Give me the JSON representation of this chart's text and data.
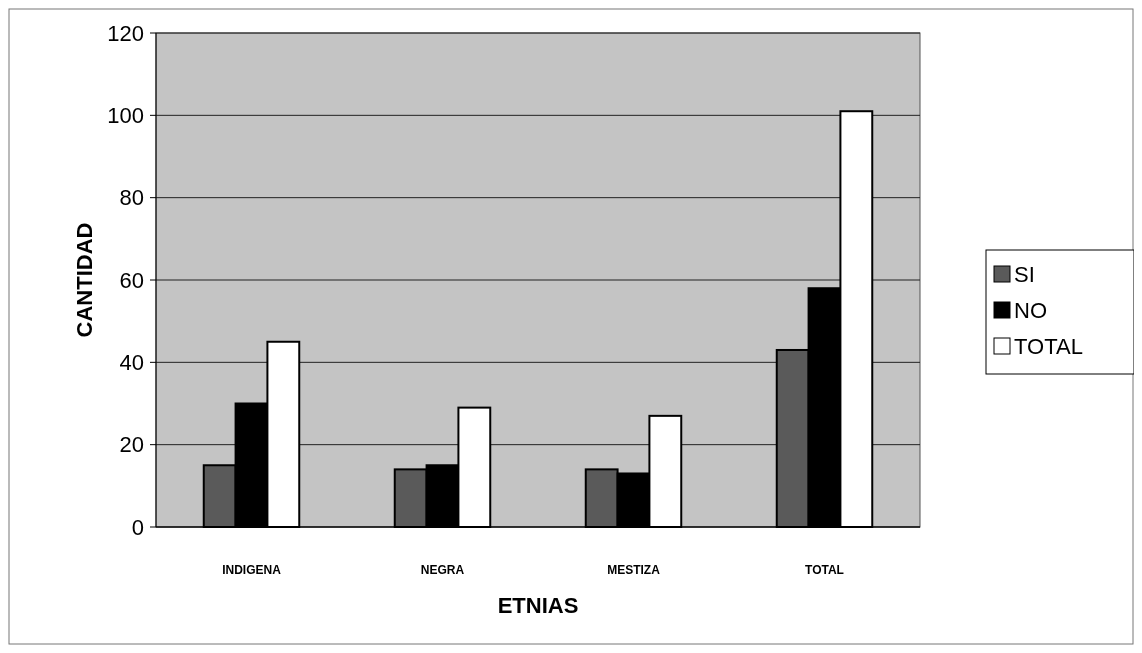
{
  "chart_data": {
    "type": "bar",
    "xlabel": "ETNIAS",
    "ylabel": "CANTIDAD",
    "categories": [
      "INDIGENA",
      "NEGRA",
      "MESTIZA",
      "TOTAL"
    ],
    "series": [
      {
        "name": "SI",
        "color": "#5a5a5a",
        "values": [
          15,
          14,
          14,
          43
        ]
      },
      {
        "name": "NO",
        "color": "#000000",
        "values": [
          30,
          15,
          13,
          58
        ]
      },
      {
        "name": "TOTAL",
        "color": "#ffffff",
        "values": [
          45,
          29,
          27,
          101
        ]
      }
    ],
    "ylim": [
      0,
      120
    ],
    "yticks": [
      0,
      20,
      40,
      60,
      80,
      100,
      120
    ],
    "grid": "y",
    "legend": "right"
  }
}
